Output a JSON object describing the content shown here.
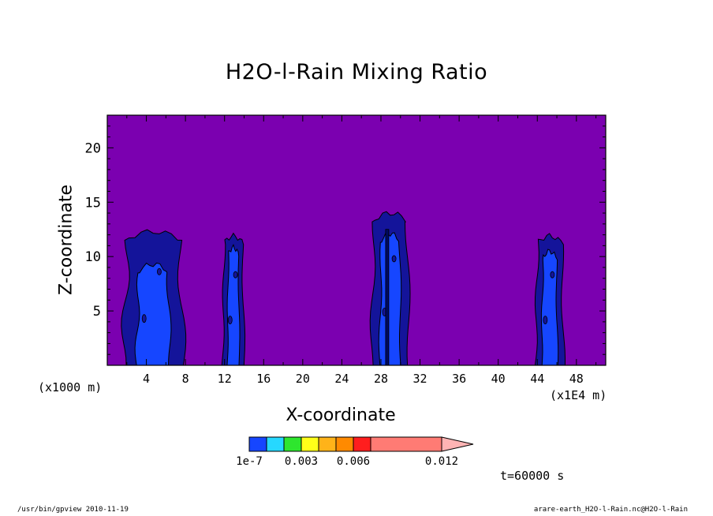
{
  "chart_data": {
    "type": "heatmap",
    "title": "H2O-l-Rain Mixing Ratio",
    "xlabel": "X-coordinate",
    "ylabel": "Z-coordinate",
    "x_unit": "(x1E4 m)",
    "y_unit": "(x1000 m)",
    "xlim": [
      0,
      51
    ],
    "ylim": [
      0,
      23
    ],
    "x_ticks": [
      4,
      8,
      12,
      16,
      20,
      24,
      28,
      32,
      36,
      40,
      44,
      48
    ],
    "y_ticks": [
      5,
      10,
      15,
      20
    ],
    "background_level": "below 1e-7",
    "background_color": "#7b00b0",
    "colorbar": {
      "levels": [
        "1e-7",
        "0.0015",
        "0.003",
        "0.0045",
        "0.006",
        "0.0075",
        "0.009",
        "0.012"
      ],
      "tick_labels": [
        "1e-7",
        "0.003",
        "0.006",
        "0.012"
      ],
      "colors": [
        "#1646ff",
        "#26d8ff",
        "#2ee62e",
        "#ffff19",
        "#ffb319",
        "#ff8a00",
        "#ff1e1e",
        "#ff7b74"
      ],
      "extend_color": "#ffb4b4"
    },
    "cells": [
      {
        "name": "cell near x=5",
        "x_range": [
          1.6,
          7.8
        ],
        "z_top": 12.3,
        "levels": [
          "1e-7"
        ]
      },
      {
        "name": "cell near x=13",
        "x_range": [
          11.8,
          14.0
        ],
        "z_top": 11.9,
        "levels": [
          "1e-7"
        ]
      },
      {
        "name": "cell near x=28",
        "x_range": [
          27.0,
          30.9
        ],
        "z_top": 14.0,
        "levels": [
          "1e-7"
        ]
      },
      {
        "name": "cell near x=45",
        "x_range": [
          43.8,
          46.7
        ],
        "z_top": 11.9,
        "levels": [
          "1e-7"
        ]
      }
    ],
    "time": "t=60000 s"
  },
  "footer": {
    "left": "/usr/bin/gpview   2010-11-19",
    "right": "arare-earth_H2O-l-Rain.nc@H2O-l-Rain"
  }
}
